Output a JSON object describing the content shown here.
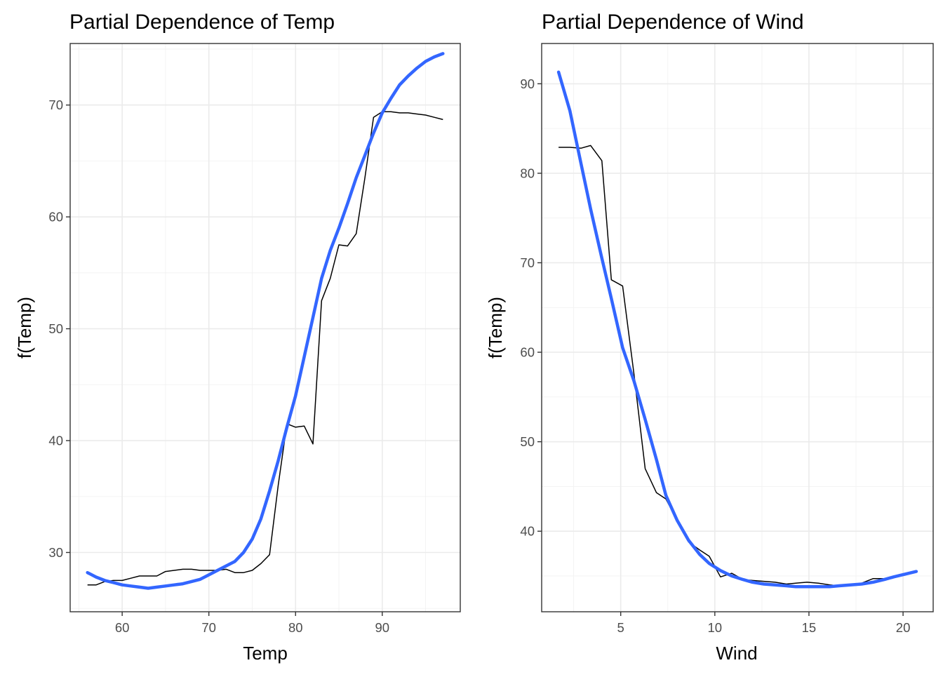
{
  "colors": {
    "smooth": "#3366ff",
    "raw": "#000000"
  },
  "chart_data": [
    {
      "type": "line",
      "title": "Partial Dependence of Temp",
      "xlabel": "Temp",
      "ylabel": "f(Temp)",
      "xlim": [
        54.0,
        99.0
      ],
      "ylim": [
        24.7,
        75.5
      ],
      "xticks": [
        60,
        70,
        80,
        90
      ],
      "yticks": [
        30,
        40,
        50,
        60,
        70
      ],
      "grid": true,
      "series": [
        {
          "role": "raw",
          "x": [
            56,
            57,
            58,
            59,
            60,
            61,
            62,
            63,
            64,
            65,
            66,
            67,
            68,
            69,
            70,
            71,
            72,
            73,
            74,
            75,
            76,
            77,
            78,
            79,
            80,
            81,
            82,
            83,
            84,
            85,
            86,
            87,
            88,
            89,
            90,
            91,
            92,
            93,
            94,
            95,
            96,
            97
          ],
          "values": [
            27.1,
            27.1,
            27.4,
            27.5,
            27.5,
            27.7,
            27.9,
            27.9,
            27.9,
            28.3,
            28.4,
            28.5,
            28.5,
            28.4,
            28.4,
            28.4,
            28.5,
            28.2,
            28.2,
            28.4,
            29.0,
            29.8,
            36.0,
            41.5,
            41.2,
            41.3,
            39.7,
            52.5,
            54.5,
            57.5,
            57.4,
            58.5,
            63.5,
            68.9,
            69.4,
            69.4,
            69.3,
            69.3,
            69.2,
            69.1,
            68.9,
            68.7
          ]
        },
        {
          "role": "smooth",
          "x": [
            56,
            57,
            58,
            59,
            60,
            61,
            62,
            63,
            64,
            65,
            66,
            67,
            68,
            69,
            70,
            71,
            72,
            73,
            74,
            75,
            76,
            77,
            78,
            79,
            80,
            81,
            82,
            83,
            84,
            85,
            86,
            87,
            88,
            89,
            90,
            91,
            92,
            93,
            94,
            95,
            96,
            97
          ],
          "values": [
            28.2,
            27.8,
            27.5,
            27.3,
            27.1,
            27.0,
            26.9,
            26.8,
            26.9,
            27.0,
            27.1,
            27.2,
            27.4,
            27.6,
            28.0,
            28.4,
            28.8,
            29.2,
            30.0,
            31.2,
            33.0,
            35.5,
            38.2,
            41.2,
            44.0,
            47.5,
            51.0,
            54.5,
            57.0,
            59.0,
            61.2,
            63.5,
            65.5,
            67.5,
            69.3,
            70.6,
            71.8,
            72.6,
            73.3,
            73.9,
            74.3,
            74.6
          ]
        }
      ]
    },
    {
      "type": "line",
      "title": "Partial Dependence of Wind",
      "xlabel": "Wind",
      "ylabel": "f(Temp)",
      "xlim": [
        0.8,
        21.6
      ],
      "ylim": [
        31.0,
        94.5
      ],
      "xticks": [
        5,
        10,
        15,
        20
      ],
      "yticks": [
        40,
        50,
        60,
        70,
        80,
        90
      ],
      "grid": true,
      "series": [
        {
          "role": "raw",
          "x": [
            1.7,
            2.3,
            2.9,
            3.4,
            4.0,
            4.5,
            5.1,
            5.7,
            6.3,
            6.9,
            7.4,
            8.0,
            8.6,
            9.2,
            9.7,
            10.3,
            10.9,
            11.5,
            12.0,
            12.6,
            13.2,
            13.8,
            14.3,
            14.9,
            15.5,
            16.1,
            16.6,
            17.2,
            17.8,
            18.4,
            19.0,
            19.5,
            20.1,
            20.7
          ],
          "values": [
            82.9,
            82.9,
            82.8,
            83.1,
            81.4,
            68.1,
            67.4,
            57.6,
            47.0,
            44.3,
            43.6,
            41.2,
            38.8,
            37.9,
            37.2,
            34.9,
            35.3,
            34.6,
            34.5,
            34.4,
            34.3,
            34.1,
            34.2,
            34.3,
            34.2,
            34.0,
            33.9,
            34.0,
            34.2,
            34.7,
            34.7,
            34.8,
            35.1,
            35.5
          ]
        },
        {
          "role": "smooth",
          "x": [
            1.7,
            2.3,
            2.9,
            3.4,
            4.0,
            4.5,
            5.1,
            5.7,
            6.3,
            6.9,
            7.4,
            8.0,
            8.6,
            9.2,
            9.7,
            10.3,
            10.9,
            11.5,
            12.0,
            12.6,
            13.2,
            13.8,
            14.3,
            14.9,
            15.5,
            16.1,
            16.6,
            17.2,
            17.8,
            18.4,
            19.0,
            19.5,
            20.1,
            20.7
          ],
          "values": [
            91.3,
            87.0,
            81.0,
            76.0,
            70.5,
            66.0,
            60.5,
            56.8,
            52.5,
            48.0,
            44.0,
            41.2,
            39.0,
            37.4,
            36.4,
            35.6,
            35.0,
            34.6,
            34.3,
            34.1,
            34.0,
            33.9,
            33.8,
            33.8,
            33.8,
            33.8,
            33.9,
            34.0,
            34.1,
            34.3,
            34.6,
            34.9,
            35.2,
            35.5
          ]
        }
      ]
    }
  ]
}
